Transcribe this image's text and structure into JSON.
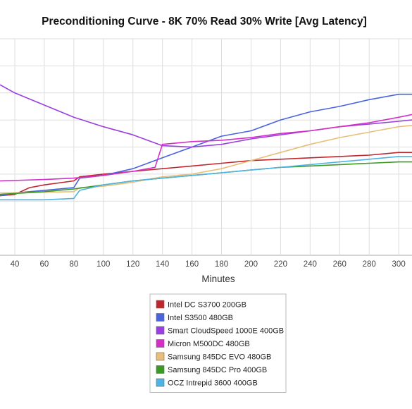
{
  "chart_data": {
    "type": "line",
    "title": "Preconditioning Curve - 8K 70% Read 30% Write [Avg Latency]",
    "xlabel": "Minutes",
    "ylabel": "",
    "x_ticks": [
      40,
      60,
      80,
      100,
      120,
      140,
      160,
      180,
      200,
      220,
      240,
      260,
      280,
      300
    ],
    "xlim": [
      30,
      309
    ],
    "ylim": [
      0,
      8
    ],
    "grid": true,
    "legend_position": "bottom-center",
    "series": [
      {
        "name": "Intel DC S3700 200GB",
        "color": "#c0272d",
        "points": [
          [
            30,
            2.2
          ],
          [
            40,
            2.25
          ],
          [
            50,
            2.5
          ],
          [
            60,
            2.6
          ],
          [
            80,
            2.75
          ],
          [
            84,
            2.9
          ],
          [
            100,
            3.0
          ],
          [
            120,
            3.1
          ],
          [
            140,
            3.2
          ],
          [
            160,
            3.3
          ],
          [
            180,
            3.4
          ],
          [
            200,
            3.5
          ],
          [
            220,
            3.55
          ],
          [
            240,
            3.6
          ],
          [
            260,
            3.65
          ],
          [
            280,
            3.7
          ],
          [
            300,
            3.8
          ],
          [
            309,
            3.8
          ]
        ]
      },
      {
        "name": "Intel S3500 480GB",
        "color": "#4a64e0",
        "points": [
          [
            30,
            2.2
          ],
          [
            40,
            2.3
          ],
          [
            60,
            2.4
          ],
          [
            80,
            2.5
          ],
          [
            84,
            2.85
          ],
          [
            100,
            2.95
          ],
          [
            120,
            3.2
          ],
          [
            140,
            3.6
          ],
          [
            160,
            4.0
          ],
          [
            180,
            4.4
          ],
          [
            200,
            4.6
          ],
          [
            220,
            5.0
          ],
          [
            240,
            5.3
          ],
          [
            260,
            5.5
          ],
          [
            280,
            5.75
          ],
          [
            300,
            5.95
          ],
          [
            309,
            5.95
          ]
        ]
      },
      {
        "name": "Smart CloudSpeed 1000E 400GB",
        "color": "#9a3fe0",
        "points": [
          [
            30,
            6.3
          ],
          [
            40,
            6.0
          ],
          [
            60,
            5.55
          ],
          [
            80,
            5.1
          ],
          [
            100,
            4.75
          ],
          [
            120,
            4.45
          ],
          [
            140,
            4.05
          ],
          [
            160,
            4.0
          ],
          [
            180,
            4.1
          ],
          [
            200,
            4.3
          ],
          [
            220,
            4.45
          ],
          [
            240,
            4.6
          ],
          [
            260,
            4.75
          ],
          [
            280,
            4.85
          ],
          [
            300,
            4.95
          ],
          [
            309,
            5.0
          ]
        ]
      },
      {
        "name": "Micron M500DC 480GB",
        "color": "#d430c8",
        "points": [
          [
            30,
            2.75
          ],
          [
            60,
            2.8
          ],
          [
            80,
            2.85
          ],
          [
            100,
            2.95
          ],
          [
            120,
            3.1
          ],
          [
            135,
            3.25
          ],
          [
            140,
            4.1
          ],
          [
            160,
            4.2
          ],
          [
            180,
            4.25
          ],
          [
            200,
            4.35
          ],
          [
            220,
            4.5
          ],
          [
            240,
            4.6
          ],
          [
            260,
            4.75
          ],
          [
            280,
            4.9
          ],
          [
            300,
            5.1
          ],
          [
            309,
            5.2
          ]
        ]
      },
      {
        "name": "Samsung 845DC EVO 480GB",
        "color": "#e8bf79",
        "points": [
          [
            30,
            2.3
          ],
          [
            80,
            2.35
          ],
          [
            84,
            2.5
          ],
          [
            100,
            2.55
          ],
          [
            120,
            2.7
          ],
          [
            140,
            2.9
          ],
          [
            160,
            3.0
          ],
          [
            180,
            3.2
          ],
          [
            200,
            3.5
          ],
          [
            220,
            3.8
          ],
          [
            240,
            4.1
          ],
          [
            260,
            4.35
          ],
          [
            280,
            4.55
          ],
          [
            300,
            4.75
          ],
          [
            309,
            4.8
          ]
        ]
      },
      {
        "name": "Samsung 845DC Pro 400GB",
        "color": "#3a9a22",
        "points": [
          [
            30,
            2.25
          ],
          [
            60,
            2.35
          ],
          [
            80,
            2.45
          ],
          [
            100,
            2.6
          ],
          [
            120,
            2.75
          ],
          [
            140,
            2.85
          ],
          [
            160,
            2.95
          ],
          [
            180,
            3.05
          ],
          [
            200,
            3.15
          ],
          [
            220,
            3.25
          ],
          [
            240,
            3.3
          ],
          [
            260,
            3.35
          ],
          [
            280,
            3.4
          ],
          [
            300,
            3.45
          ],
          [
            309,
            3.45
          ]
        ]
      },
      {
        "name": "OCZ Intrepid 3600 400GB",
        "color": "#4fb3e6",
        "points": [
          [
            30,
            2.05
          ],
          [
            60,
            2.05
          ],
          [
            80,
            2.1
          ],
          [
            84,
            2.4
          ],
          [
            100,
            2.6
          ],
          [
            120,
            2.75
          ],
          [
            140,
            2.85
          ],
          [
            160,
            2.95
          ],
          [
            180,
            3.05
          ],
          [
            200,
            3.15
          ],
          [
            220,
            3.25
          ],
          [
            240,
            3.35
          ],
          [
            260,
            3.45
          ],
          [
            280,
            3.55
          ],
          [
            300,
            3.65
          ],
          [
            309,
            3.65
          ]
        ]
      }
    ]
  }
}
